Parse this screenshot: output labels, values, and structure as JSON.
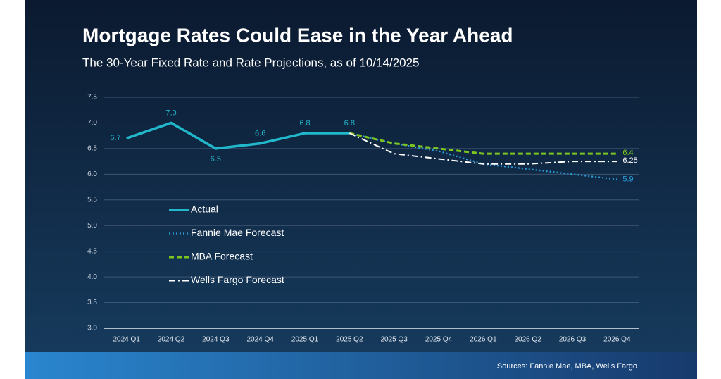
{
  "chart_data": {
    "type": "line",
    "title": "Mortgage Rates Could Ease in the Year Ahead",
    "subtitle": "The 30-Year Fixed Rate and Rate Projections, as of 10/14/2025",
    "source": "Sources: Fannie Mae, MBA, Wells Fargo",
    "categories": [
      "2024 Q1",
      "2024 Q2",
      "2024 Q3",
      "2024 Q4",
      "2025 Q1",
      "2025 Q2",
      "2025 Q3",
      "2025 Q4",
      "2026 Q1",
      "2026 Q2",
      "2026 Q3",
      "2026 Q4"
    ],
    "ylim": [
      3,
      7.5
    ],
    "yticks": [
      {
        "value": 3,
        "label": "3.0"
      },
      3.5,
      {
        "value": 4,
        "label": "4.0"
      },
      4.5,
      {
        "value": 5,
        "label": "5.0"
      },
      5.5,
      {
        "value": 6,
        "label": "6.0"
      },
      6.5,
      {
        "value": 7,
        "label": "7.0"
      },
      7.5
    ],
    "grid": true,
    "legend": "lower left",
    "series": [
      {
        "name": "Actual",
        "color": "#22b8cc",
        "style": "solid",
        "values": [
          6.7,
          7,
          6.5,
          6.6,
          6.8,
          6.8,
          null,
          null,
          null,
          null,
          null,
          null
        ],
        "value_labels": [
          "6.7",
          "7.0",
          "6.5",
          "6.6",
          "6.8",
          "6.8",
          null,
          null,
          null,
          null,
          null,
          null
        ]
      },
      {
        "name": "Fannie Mae Forecast",
        "color": "#2b9fdc",
        "style": "dotted",
        "values": [
          null,
          null,
          null,
          null,
          null,
          6.8,
          6.6,
          6.45,
          6.2,
          6.1,
          6,
          5.9
        ],
        "value_labels": [
          null,
          null,
          null,
          null,
          null,
          null,
          null,
          null,
          null,
          null,
          null,
          "5.9"
        ]
      },
      {
        "name": "MBA Forecast",
        "color": "#7cc521",
        "style": "dashed",
        "values": [
          null,
          null,
          null,
          null,
          null,
          6.8,
          6.6,
          6.5,
          6.4,
          6.4,
          6.4,
          6.4
        ],
        "value_labels": [
          null,
          null,
          null,
          null,
          null,
          null,
          null,
          null,
          null,
          null,
          null,
          "6.4"
        ]
      },
      {
        "name": "Wells Fargo Forecast",
        "color": "#ffffff",
        "style": "dashdot",
        "values": [
          null,
          null,
          null,
          null,
          null,
          6.8,
          6.4,
          6.3,
          6.2,
          6.2,
          6.25,
          6.25
        ],
        "value_labels": [
          null,
          null,
          null,
          null,
          null,
          null,
          null,
          null,
          null,
          null,
          null,
          "6.25"
        ]
      }
    ]
  }
}
